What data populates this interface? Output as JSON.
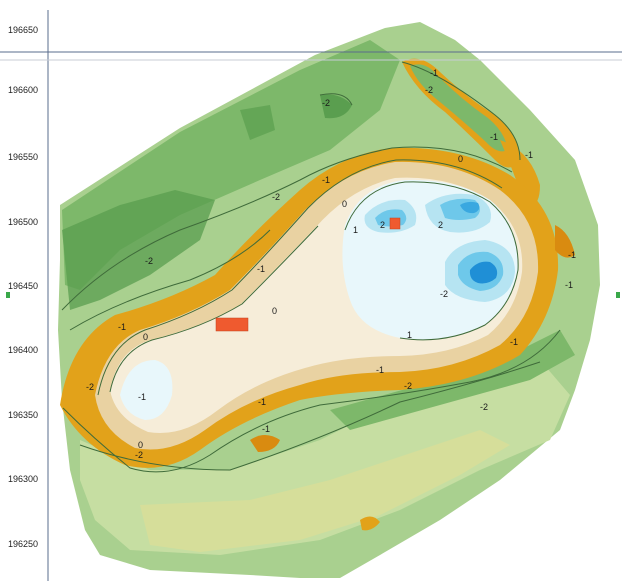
{
  "map": {
    "y_axis_ticks": [
      "196650",
      "196600",
      "196550",
      "196500",
      "196450",
      "196400",
      "196350",
      "196300",
      "196250"
    ],
    "contour_labels": [
      "-2",
      "-2",
      "-1",
      "-1",
      "-1",
      "0",
      "-1",
      "-2",
      "2",
      "0",
      "1",
      "-2",
      "-1",
      "0",
      "2",
      "-2",
      "0",
      "1",
      "-1",
      "-1",
      "0",
      "-2",
      "-1",
      "-1",
      "-2",
      "-2",
      "-1",
      "-1",
      "-1",
      "-2",
      "-1"
    ],
    "colors": {
      "deep_green": "#5a9e4f",
      "mid_green": "#7db86a",
      "light_green": "#a9d08f",
      "pale_green": "#c6dea2",
      "yellow_green": "#d6de9a",
      "orange": "#e2a21a",
      "dark_orange": "#d98b10",
      "tan": "#e9d2a2",
      "cream": "#f6edd9",
      "pale_cyan": "#e8f7fb",
      "light_blue": "#b6e4f2",
      "mid_blue": "#6ec8ea",
      "deep_blue": "#1f8fd6",
      "marker_red": "#ef5a2f",
      "contour_line": "#3f6b3a",
      "axis_line": "#5a6c8c"
    },
    "markers": [
      "red-rectangle-marker",
      "red-square-marker"
    ]
  }
}
